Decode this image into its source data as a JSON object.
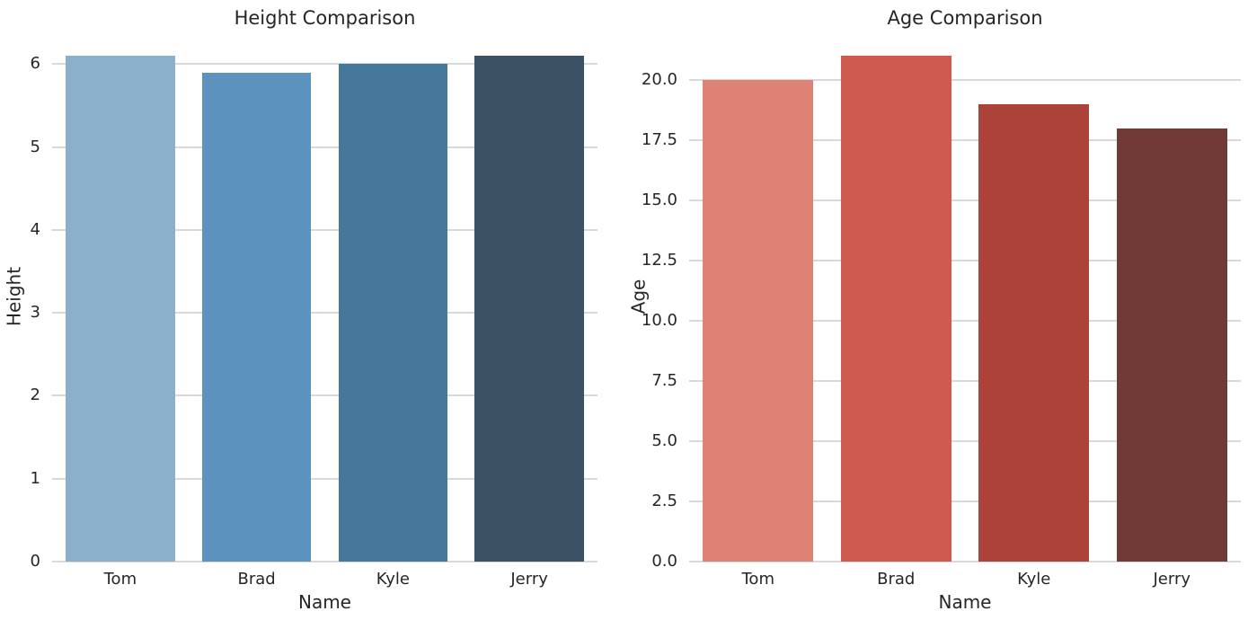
{
  "figure": {
    "background": "#ffffff",
    "text_color": "#262626",
    "grid_color": "#d9d9d9"
  },
  "chart_data": [
    {
      "type": "bar",
      "title": "Height Comparison",
      "xlabel": "Name",
      "ylabel": "Height",
      "categories": [
        "Tom",
        "Brad",
        "Kyle",
        "Jerry"
      ],
      "values": [
        6.1,
        5.9,
        6.0,
        6.1
      ],
      "ylim": [
        0,
        6.405
      ],
      "yticks": [
        0,
        1,
        2,
        3,
        4,
        5,
        6
      ],
      "ytick_labels": [
        "0",
        "1",
        "2",
        "3",
        "4",
        "5",
        "6"
      ],
      "bar_colors": [
        "#8bb0cc",
        "#5c92be",
        "#45789b",
        "#3b5264"
      ],
      "grid": true,
      "legend": false
    },
    {
      "type": "bar",
      "title": "Age Comparison",
      "xlabel": "Name",
      "ylabel": "Age",
      "categories": [
        "Tom",
        "Brad",
        "Kyle",
        "Jerry"
      ],
      "values": [
        20,
        21,
        19,
        18
      ],
      "ylim": [
        0,
        22.05
      ],
      "yticks": [
        0,
        2.5,
        5,
        7.5,
        10,
        12.5,
        15,
        17.5,
        20
      ],
      "ytick_labels": [
        "0.0",
        "2.5",
        "5.0",
        "7.5",
        "10.0",
        "12.5",
        "15.0",
        "17.5",
        "20.0"
      ],
      "bar_colors": [
        "#dd8274",
        "#cf5a50",
        "#ad4238",
        "#703a37"
      ],
      "grid": true,
      "legend": false
    }
  ]
}
